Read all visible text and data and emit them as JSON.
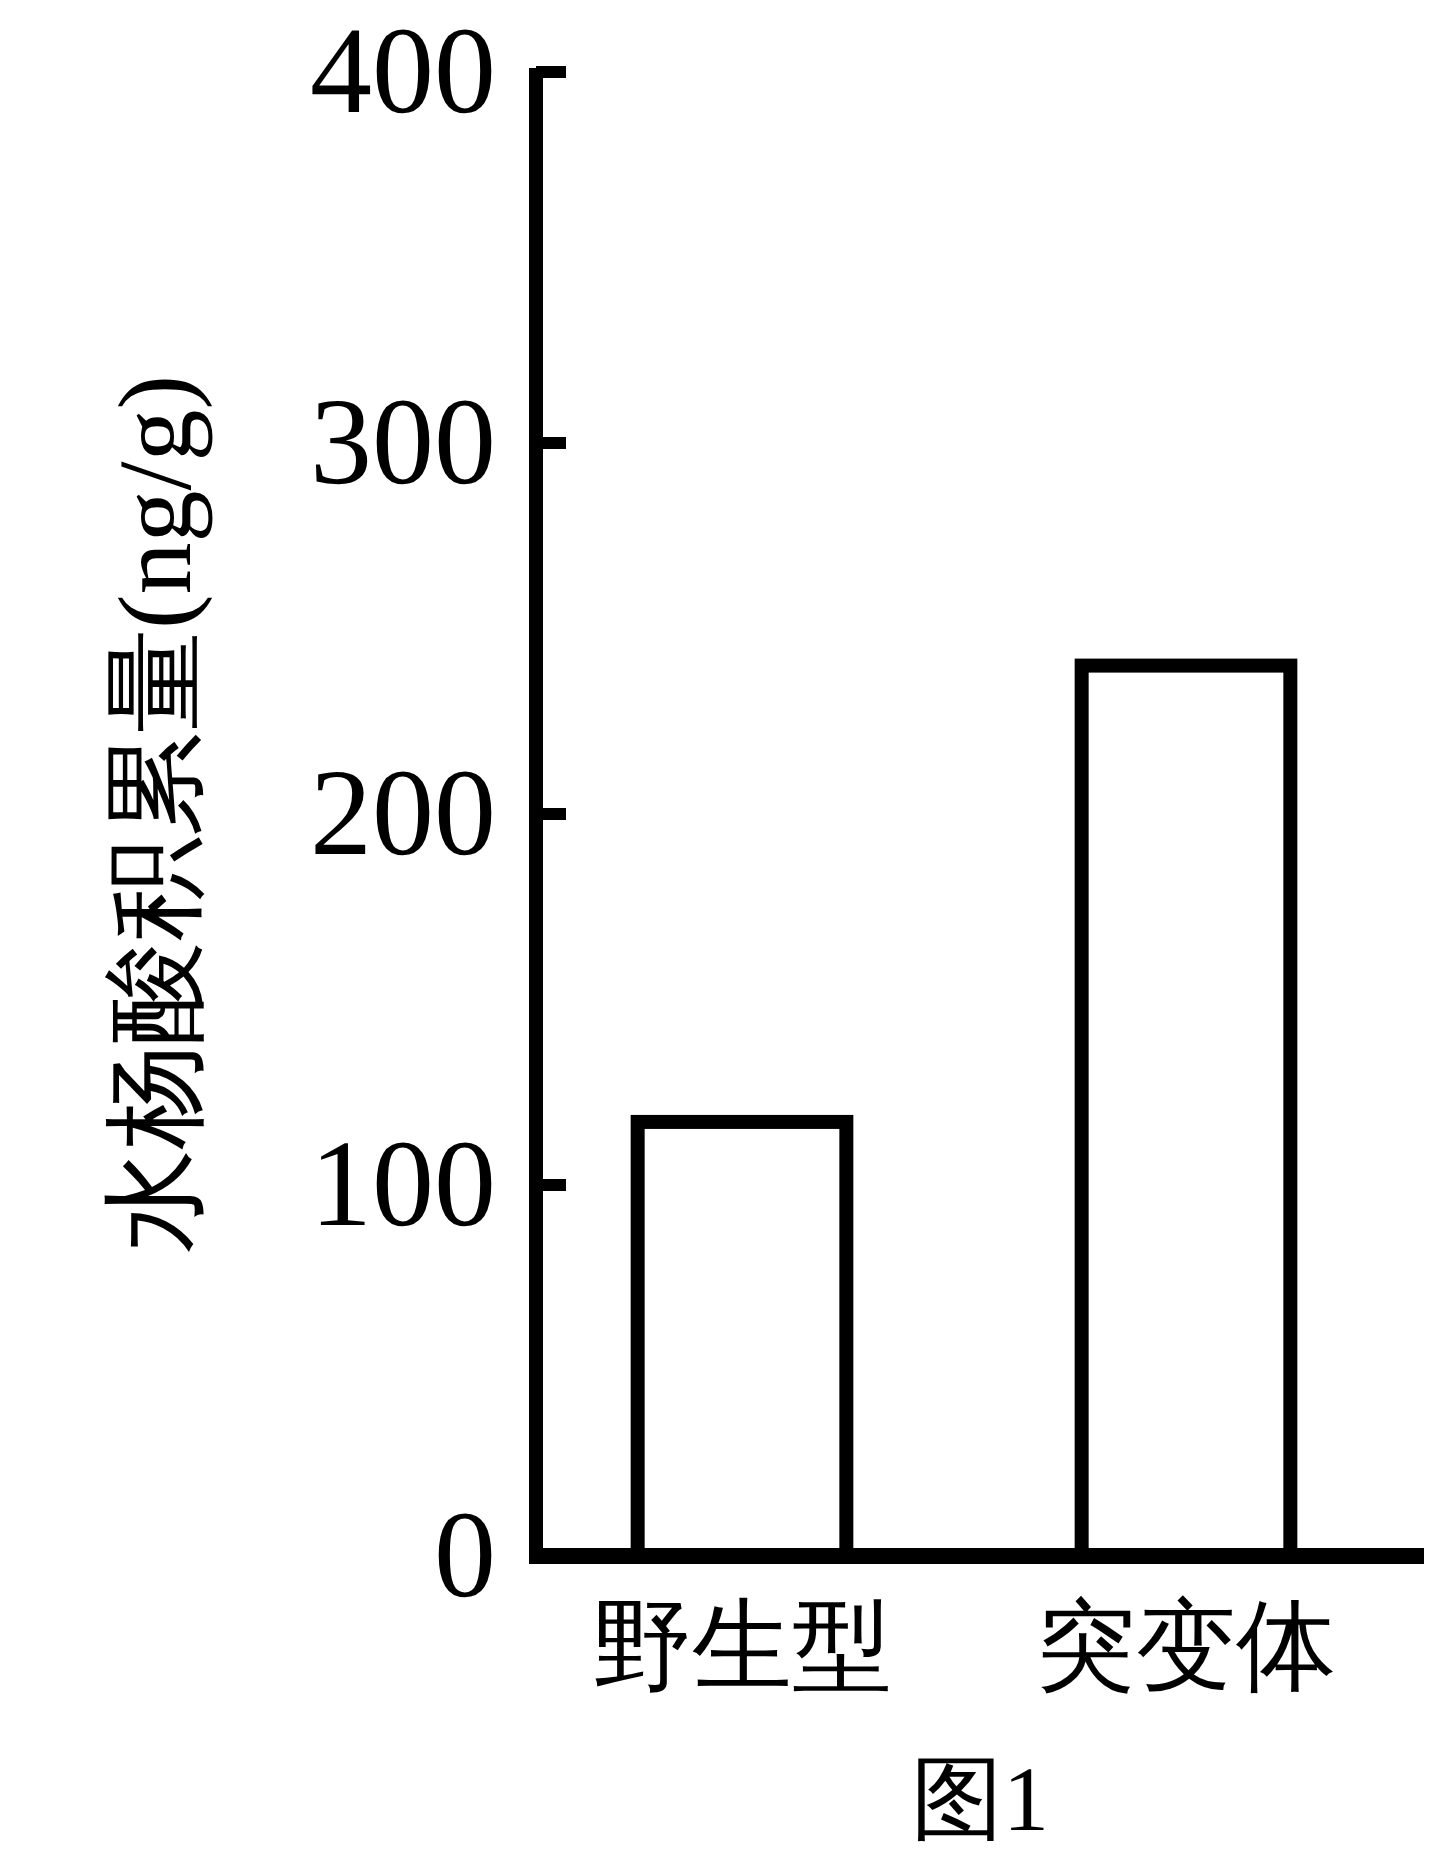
{
  "chart_data": {
    "type": "bar",
    "categories": [
      "野生型",
      "突变体"
    ],
    "values": [
      117,
      240
    ],
    "color": "#ffffff",
    "ylabel": "水杨酸积累量(ng/g)",
    "ylim": [
      0,
      400
    ],
    "yticks": [
      0,
      100,
      200,
      300,
      400
    ],
    "annotations": [
      "图1"
    ]
  }
}
